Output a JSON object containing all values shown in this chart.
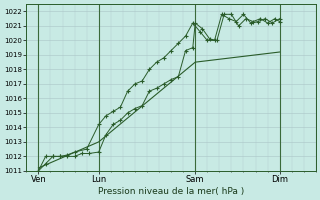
{
  "bg_color": "#c8eae4",
  "grid_color": "#b0cccc",
  "line_color": "#2a5c2a",
  "marker_color": "#2a5c2a",
  "xlabel": "Pression niveau de la mer( hPa )",
  "ylim": [
    1011,
    1022.5
  ],
  "yticks": [
    1011,
    1012,
    1013,
    1014,
    1015,
    1016,
    1017,
    1018,
    1019,
    1020,
    1021,
    1022
  ],
  "xlim": [
    0,
    12
  ],
  "day_positions": [
    0.5,
    3,
    7,
    10.5
  ],
  "day_vlines": [
    0.5,
    3,
    7,
    10.5
  ],
  "day_labels": [
    "Ven",
    "Lun",
    "Sam",
    "Dim"
  ],
  "series1_x": [
    0.5,
    0.8,
    1.1,
    1.4,
    1.7,
    2.0,
    2.3,
    2.6,
    3.0,
    3.3,
    3.6,
    3.9,
    4.2,
    4.5,
    4.8,
    5.1,
    5.4,
    5.7,
    6.0,
    6.3,
    6.6,
    6.9,
    7.0,
    7.3,
    7.6,
    7.9,
    8.2,
    8.5,
    8.8,
    9.1,
    9.4,
    9.7,
    10.0,
    10.3,
    10.5
  ],
  "series1_y": [
    1011.0,
    1011.5,
    1012.0,
    1012.0,
    1012.0,
    1012.0,
    1012.2,
    1012.2,
    1012.3,
    1013.5,
    1014.2,
    1014.5,
    1015.0,
    1015.3,
    1015.5,
    1016.5,
    1016.7,
    1017.0,
    1017.3,
    1017.5,
    1019.3,
    1019.5,
    1021.2,
    1020.8,
    1020.1,
    1020.0,
    1021.8,
    1021.8,
    1021.0,
    1021.5,
    1021.3,
    1021.5,
    1021.2,
    1021.5,
    1021.3
  ],
  "series2_x": [
    0.5,
    0.8,
    1.1,
    1.4,
    1.7,
    2.0,
    2.5,
    3.0,
    3.3,
    3.6,
    3.9,
    4.2,
    4.5,
    4.8,
    5.1,
    5.4,
    5.7,
    6.0,
    6.3,
    6.6,
    6.9,
    7.2,
    7.5,
    7.8,
    8.1,
    8.4,
    8.7,
    9.0,
    9.3,
    9.6,
    9.9,
    10.2,
    10.5
  ],
  "series2_y": [
    1011.0,
    1012.0,
    1012.0,
    1012.0,
    1012.1,
    1012.3,
    1012.5,
    1014.2,
    1014.8,
    1015.1,
    1015.4,
    1016.5,
    1017.0,
    1017.2,
    1018.0,
    1018.5,
    1018.8,
    1019.3,
    1019.8,
    1020.3,
    1021.2,
    1020.6,
    1020.0,
    1020.0,
    1021.8,
    1021.5,
    1021.3,
    1021.8,
    1021.2,
    1021.3,
    1021.5,
    1021.2,
    1021.5
  ],
  "series3_x": [
    0.5,
    3.0,
    7.0,
    10.5
  ],
  "series3_y": [
    1011.2,
    1013.0,
    1018.5,
    1019.2
  ]
}
